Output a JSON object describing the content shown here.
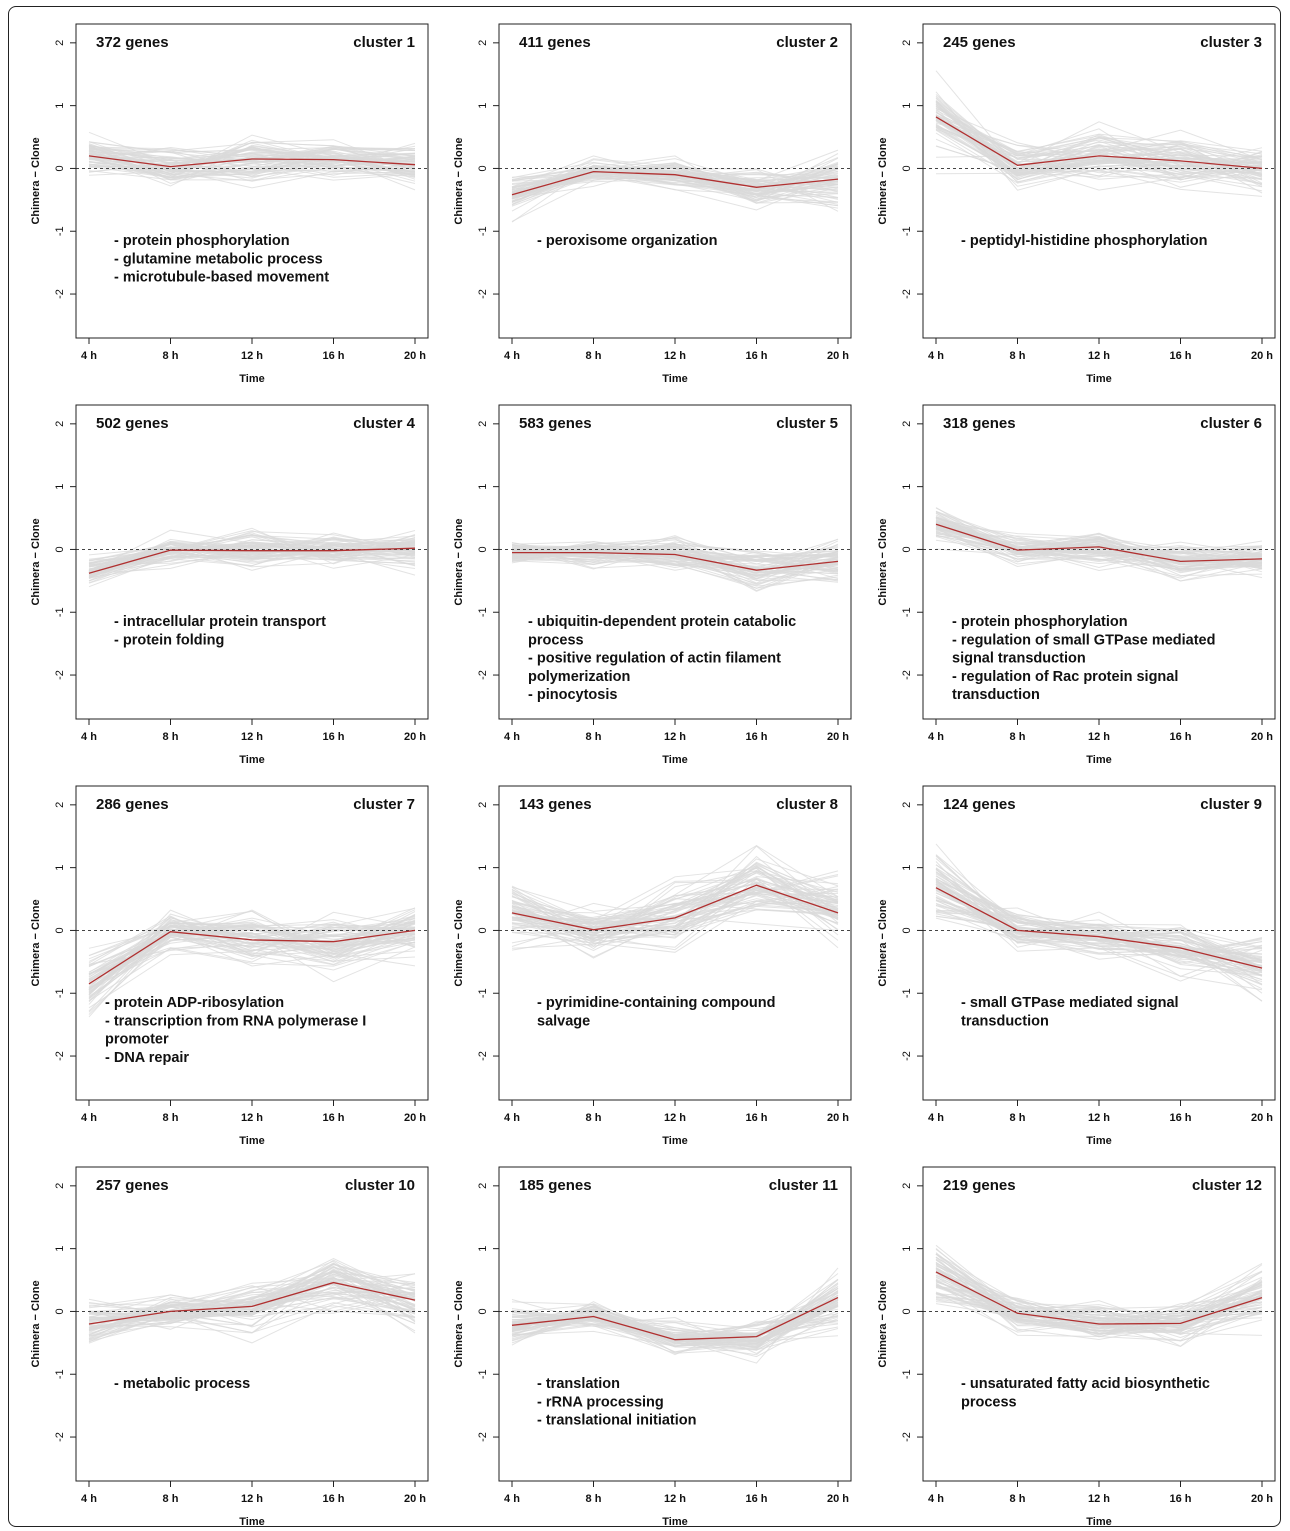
{
  "style": {
    "bg_line_color": "#d9d9d9",
    "mean_line_color": "#b03030",
    "axis_color": "#222222",
    "zero_line_color": "#444444"
  },
  "shared": {
    "xlabel": "Time",
    "ylabel": "Chimera − Clone",
    "xticks": [
      "4 h",
      "8 h",
      "12 h",
      "16 h",
      "20 h"
    ],
    "yticks": [
      "-2",
      "-1",
      "0",
      "1",
      "2"
    ],
    "ylim": [
      -2.7,
      2.3
    ],
    "zero_line": "dashed",
    "grid": false
  },
  "chart_data": [
    {
      "type": "line",
      "cluster_label": "cluster 1",
      "gene_count": "372 genes",
      "annotations": [
        "- protein phosphorylation",
        "- glutamine metabolic process",
        "- microtubule-based movement"
      ],
      "x": [
        "4 h",
        "8 h",
        "12 h",
        "16 h",
        "20 h"
      ],
      "mean": [
        0.2,
        0.03,
        0.15,
        0.14,
        0.06
      ],
      "spread": [
        0.3,
        0.3,
        0.35,
        0.3,
        0.35
      ]
    },
    {
      "type": "line",
      "cluster_label": "cluster 2",
      "gene_count": "411 genes",
      "annotations": [
        "- peroxisome organization"
      ],
      "x": [
        "4 h",
        "8 h",
        "12 h",
        "16 h",
        "20 h"
      ],
      "mean": [
        -0.42,
        -0.05,
        -0.1,
        -0.3,
        -0.17
      ],
      "spread": [
        0.25,
        0.18,
        0.22,
        0.25,
        0.4
      ]
    },
    {
      "type": "line",
      "cluster_label": "cluster 3",
      "gene_count": "245 genes",
      "annotations": [
        "- peptidyl-histidine phosphorylation"
      ],
      "x": [
        "4 h",
        "8 h",
        "12 h",
        "16 h",
        "20 h"
      ],
      "mean": [
        0.82,
        0.05,
        0.2,
        0.12,
        0.0
      ],
      "spread": [
        0.45,
        0.3,
        0.45,
        0.4,
        0.35
      ]
    },
    {
      "type": "line",
      "cluster_label": "cluster 4",
      "gene_count": "502 genes",
      "annotations": [
        "- intracellular protein transport",
        "- protein folding"
      ],
      "x": [
        "4 h",
        "8 h",
        "12 h",
        "16 h",
        "20 h"
      ],
      "mean": [
        -0.38,
        -0.01,
        -0.02,
        -0.02,
        0.02
      ],
      "spread": [
        0.25,
        0.2,
        0.3,
        0.25,
        0.3
      ]
    },
    {
      "type": "line",
      "cluster_label": "cluster 5",
      "gene_count": "583 genes",
      "annotations": [
        "- ubiquitin-dependent protein catabolic",
        "process",
        "- positive regulation of actin filament",
        "polymerization",
        "- pinocytosis"
      ],
      "x": [
        "4 h",
        "8 h",
        "12 h",
        "16 h",
        "20 h"
      ],
      "mean": [
        -0.05,
        -0.05,
        -0.08,
        -0.33,
        -0.19
      ],
      "spread": [
        0.18,
        0.2,
        0.25,
        0.3,
        0.3
      ]
    },
    {
      "type": "line",
      "cluster_label": "cluster 6",
      "gene_count": "318 genes",
      "annotations": [
        "- protein phosphorylation",
        "- regulation of small GTPase mediated",
        "signal transduction",
        "- regulation of Rac protein signal",
        "transduction"
      ],
      "x": [
        "4 h",
        "8 h",
        "12 h",
        "16 h",
        "20 h"
      ],
      "mean": [
        0.4,
        -0.01,
        0.04,
        -0.19,
        -0.15
      ],
      "spread": [
        0.25,
        0.2,
        0.25,
        0.28,
        0.25
      ]
    },
    {
      "type": "line",
      "cluster_label": "cluster 7",
      "gene_count": "286 genes",
      "annotations": [
        "- protein ADP-ribosylation",
        "- transcription from RNA polymerase I",
        "promoter",
        "- DNA repair"
      ],
      "x": [
        "4 h",
        "8 h",
        "12 h",
        "16 h",
        "20 h"
      ],
      "mean": [
        -0.85,
        -0.02,
        -0.15,
        -0.18,
        0.0
      ],
      "spread": [
        0.6,
        0.25,
        0.35,
        0.45,
        0.3
      ]
    },
    {
      "type": "line",
      "cluster_label": "cluster 8",
      "gene_count": "143 genes",
      "annotations": [
        "- pyrimidine-containing compound",
        "salvage"
      ],
      "x": [
        "4 h",
        "8 h",
        "12 h",
        "16 h",
        "20 h"
      ],
      "mean": [
        0.28,
        0.01,
        0.2,
        0.72,
        0.28
      ],
      "spread": [
        0.45,
        0.35,
        0.45,
        0.55,
        0.45
      ]
    },
    {
      "type": "line",
      "cluster_label": "cluster 9",
      "gene_count": "124 genes",
      "annotations": [
        "- small GTPase mediated signal",
        "transduction"
      ],
      "x": [
        "4 h",
        "8 h",
        "12 h",
        "16 h",
        "20 h"
      ],
      "mean": [
        0.68,
        0.0,
        -0.1,
        -0.28,
        -0.6
      ],
      "spread": [
        0.5,
        0.25,
        0.3,
        0.35,
        0.45
      ]
    },
    {
      "type": "line",
      "cluster_label": "cluster 10",
      "gene_count": "257 genes",
      "annotations": [
        "- metabolic process"
      ],
      "x": [
        "4 h",
        "8 h",
        "12 h",
        "16 h",
        "20 h"
      ],
      "mean": [
        -0.2,
        0.0,
        0.08,
        0.46,
        0.18
      ],
      "spread": [
        0.35,
        0.3,
        0.35,
        0.45,
        0.4
      ]
    },
    {
      "type": "line",
      "cluster_label": "cluster 11",
      "gene_count": "185 genes",
      "annotations": [
        "- translation",
        "- rRNA processing",
        "- translational initiation"
      ],
      "x": [
        "4 h",
        "8 h",
        "12 h",
        "16 h",
        "20 h"
      ],
      "mean": [
        -0.22,
        -0.08,
        -0.45,
        -0.4,
        0.22
      ],
      "spread": [
        0.3,
        0.22,
        0.25,
        0.25,
        0.45
      ]
    },
    {
      "type": "line",
      "cluster_label": "cluster 12",
      "gene_count": "219 genes",
      "annotations": [
        "- unsaturated fatty acid biosynthetic",
        "process"
      ],
      "x": [
        "4 h",
        "8 h",
        "12 h",
        "16 h",
        "20 h"
      ],
      "mean": [
        0.63,
        -0.03,
        -0.2,
        -0.19,
        0.22
      ],
      "spread": [
        0.45,
        0.25,
        0.3,
        0.3,
        0.4
      ]
    }
  ]
}
